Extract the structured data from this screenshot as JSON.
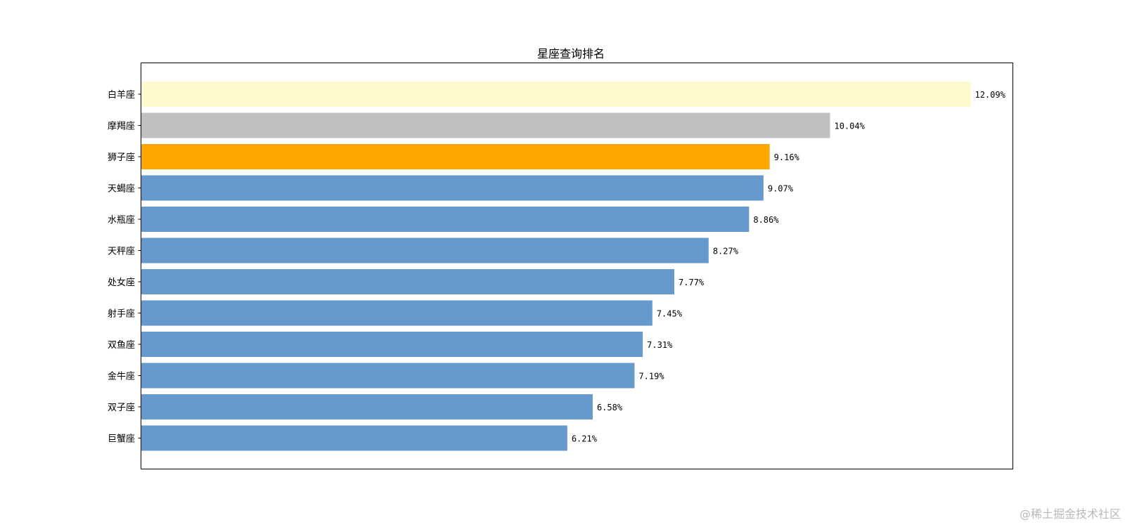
{
  "chart_data": {
    "type": "bar",
    "orientation": "horizontal",
    "title": "星座查询排名",
    "xlabel": "",
    "ylabel": "",
    "categories": [
      "白羊座",
      "摩羯座",
      "狮子座",
      "天蝎座",
      "水瓶座",
      "天秤座",
      "处女座",
      "射手座",
      "双鱼座",
      "金牛座",
      "双子座",
      "巨蟹座"
    ],
    "values": [
      12.09,
      10.04,
      9.16,
      9.07,
      8.86,
      8.27,
      7.77,
      7.45,
      7.31,
      7.19,
      6.58,
      6.21
    ],
    "value_labels": [
      "12.09%",
      "10.04%",
      "9.16%",
      "9.07%",
      "8.86%",
      "8.27%",
      "7.77%",
      "7.45%",
      "7.31%",
      "7.19%",
      "6.58%",
      "6.21%"
    ],
    "colors": [
      "#fffacd",
      "#c0c0c0",
      "#ffa500",
      "#6699cc",
      "#6699cc",
      "#6699cc",
      "#6699cc",
      "#6699cc",
      "#6699cc",
      "#6699cc",
      "#6699cc",
      "#6699cc"
    ],
    "xlim": [
      0,
      12.7
    ],
    "x_ticks_visible": false,
    "grid": false,
    "legend": "none"
  },
  "watermark": "@稀土掘金技术社区"
}
